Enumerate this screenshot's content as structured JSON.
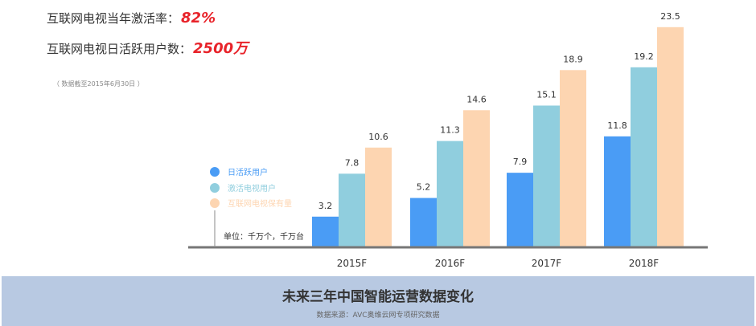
{
  "stats": {
    "activation": {
      "label": "互联网电视当年激活率：",
      "value": "82%"
    },
    "dau": {
      "label": "互联网电视日活跃用户数：",
      "value": "2500万"
    },
    "date_note": "（ 数据截至2015年6月30日 ）",
    "value_color": "#e8232a"
  },
  "chart_data": {
    "type": "bar",
    "categories": [
      "2015F",
      "2016F",
      "2017F",
      "2018F"
    ],
    "series": [
      {
        "name": "日活跃用户",
        "color": "#4a9cf5",
        "values": [
          3.2,
          5.2,
          7.9,
          11.8
        ]
      },
      {
        "name": "激活电视用户",
        "color": "#90cede",
        "values": [
          7.8,
          11.3,
          15.1,
          19.2
        ]
      },
      {
        "name": "互联网电视保有量",
        "color": "#fdd5b1",
        "values": [
          10.6,
          14.6,
          18.9,
          23.5
        ]
      }
    ],
    "unit_note": "单位：千万个，千万台",
    "ylim": [
      0,
      24
    ],
    "legend_position": "left"
  },
  "footer": {
    "title": "未来三年中国智能运营数据变化",
    "source": "数据来源：AVC奥维云网专项研究数据"
  }
}
